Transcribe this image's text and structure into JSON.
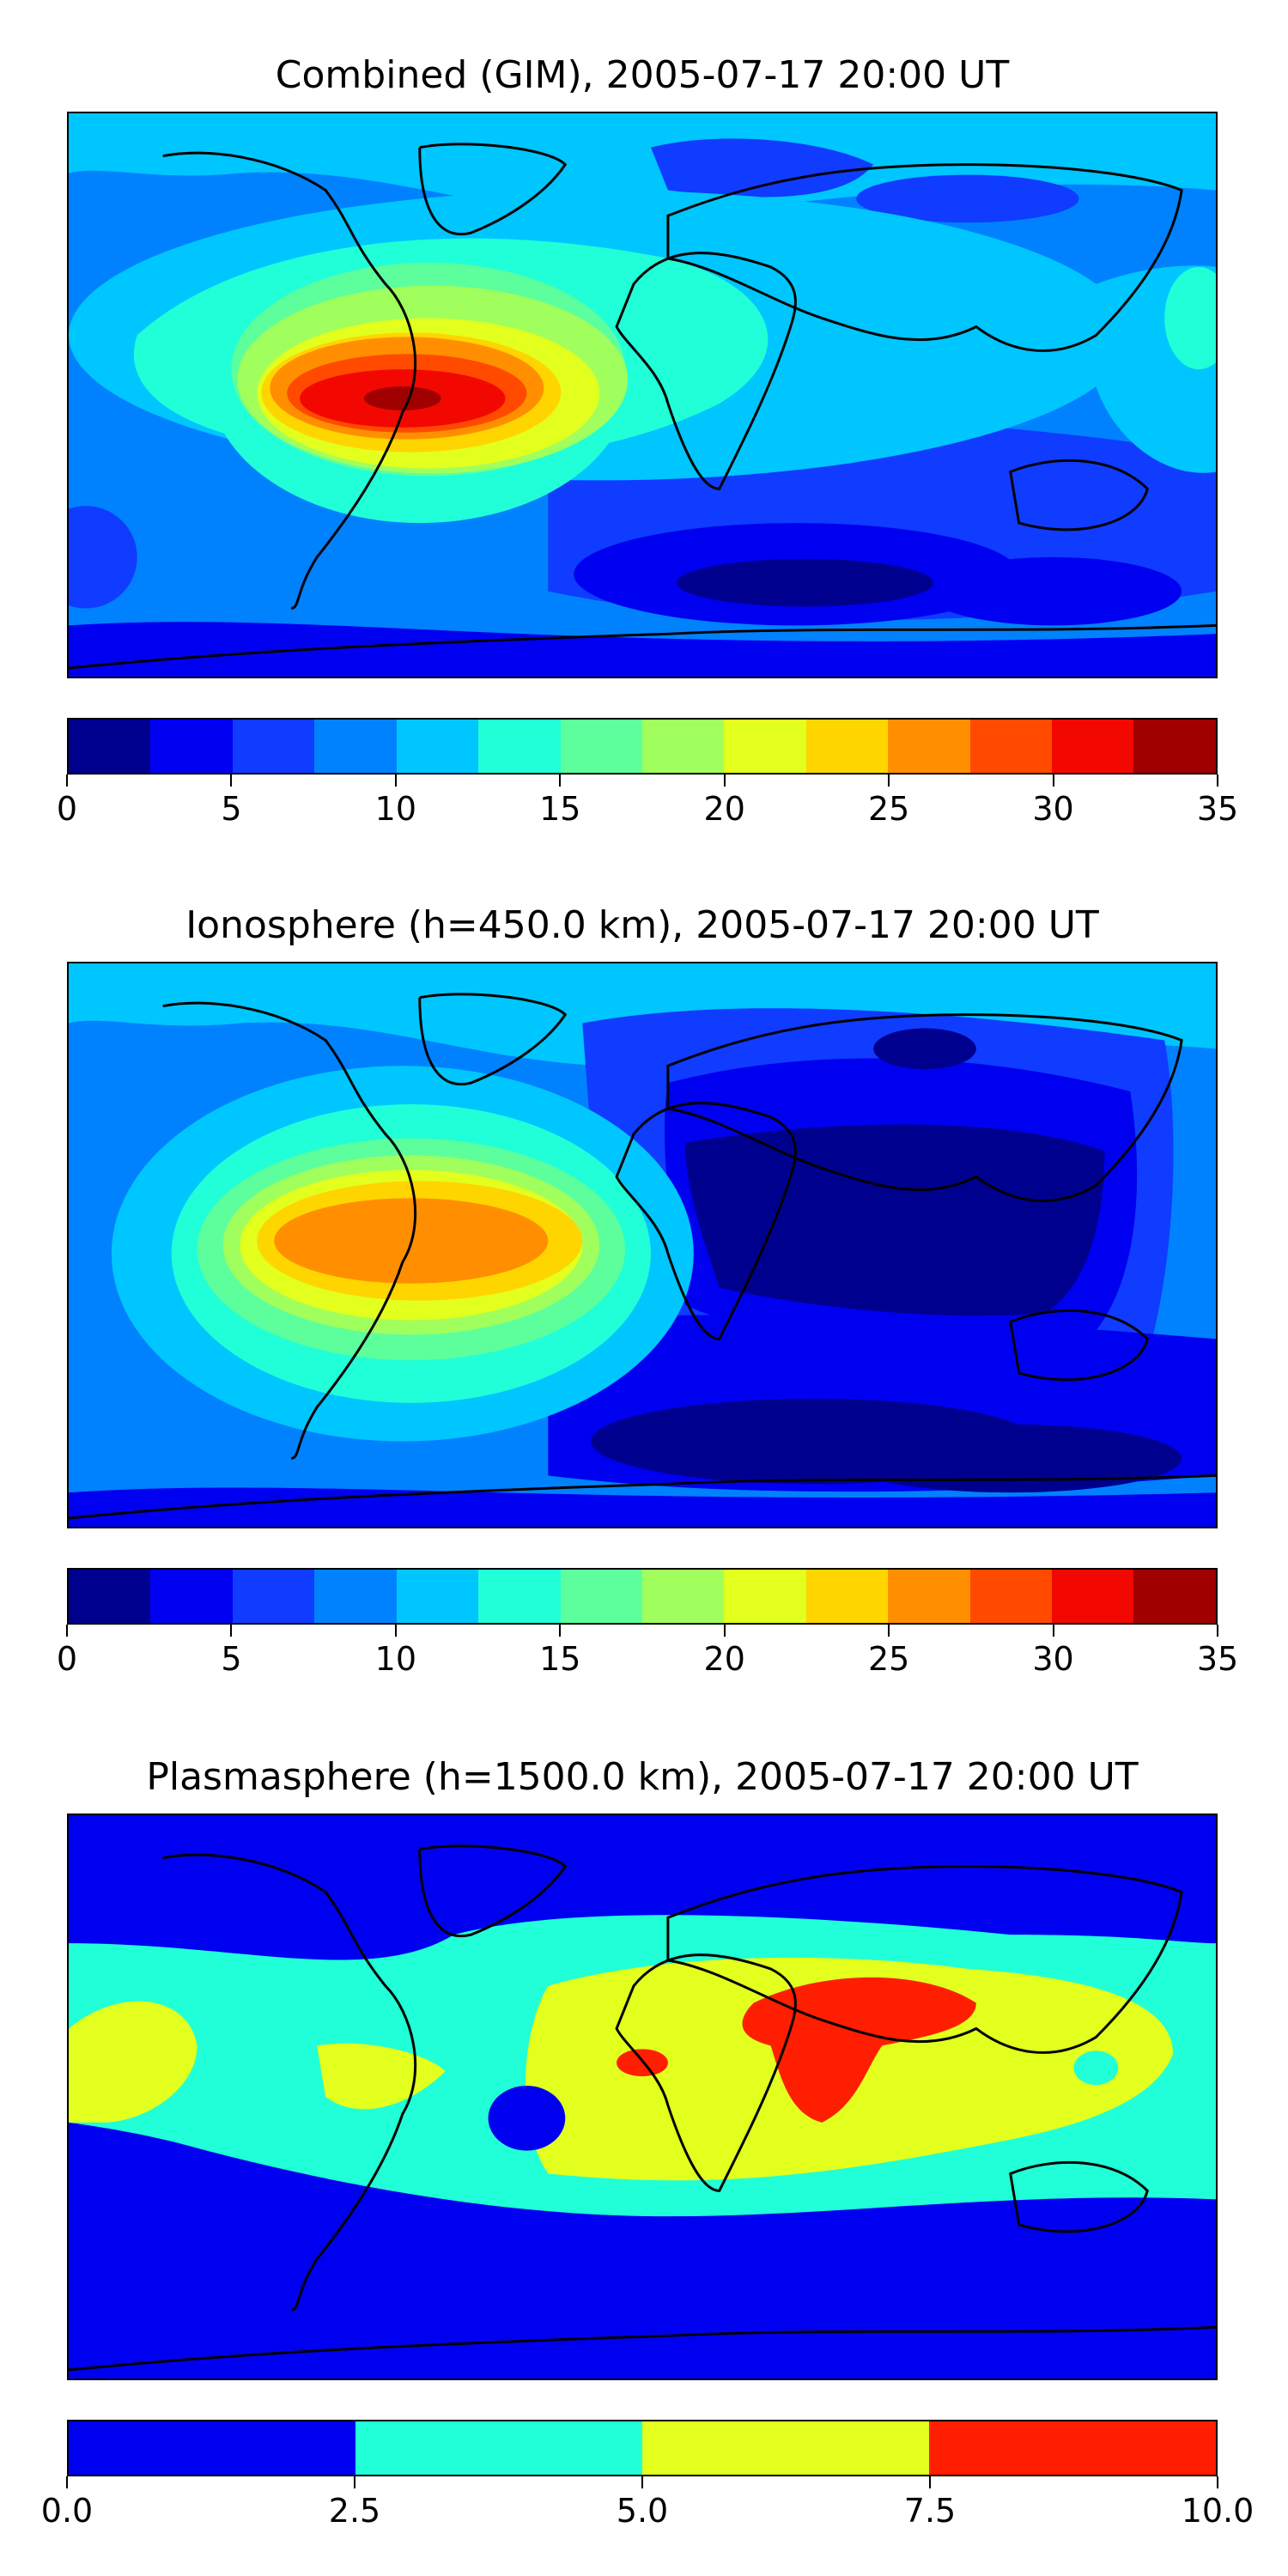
{
  "chart_data": [
    {
      "type": "heatmap",
      "title": "Combined (GIM), 2005-07-17 20:00 UT",
      "colorbar": {
        "levels": [
          0,
          2.5,
          5,
          7.5,
          10,
          12.5,
          15,
          17.5,
          20,
          22.5,
          25,
          27.5,
          30,
          32.5,
          35
        ],
        "ticks": [
          "0",
          "5",
          "10",
          "15",
          "20",
          "25",
          "30",
          "35"
        ],
        "range": [
          0,
          35
        ],
        "colors": [
          "#00008f",
          "#0000f0",
          "#0f3cff",
          "#0082ff",
          "#00c6ff",
          "#20ffd7",
          "#5cff9c",
          "#a0ff5c",
          "#e2ff1e",
          "#ffd500",
          "#ff8f00",
          "#ff4a00",
          "#f20800",
          "#a00000"
        ]
      },
      "peak": {
        "region": "tropical South America",
        "max_level": 35
      },
      "minimum": {
        "region": "southern Indian Ocean",
        "min_level": 0
      }
    },
    {
      "type": "heatmap",
      "title": "Ionosphere  (h=450.0 km), 2005-07-17 20:00 UT",
      "colorbar": {
        "levels": [
          0,
          2.5,
          5,
          7.5,
          10,
          12.5,
          15,
          17.5,
          20,
          22.5,
          25,
          27.5,
          30,
          32.5,
          35
        ],
        "ticks": [
          "0",
          "5",
          "10",
          "15",
          "20",
          "25",
          "30",
          "35"
        ],
        "range": [
          0,
          35
        ],
        "colors": [
          "#00008f",
          "#0000f0",
          "#0f3cff",
          "#0082ff",
          "#00c6ff",
          "#20ffd7",
          "#5cff9c",
          "#a0ff5c",
          "#e2ff1e",
          "#ffd500",
          "#ff8f00",
          "#ff4a00",
          "#f20800",
          "#a00000"
        ]
      },
      "peak": {
        "region": "tropical South America",
        "max_level": 27.5
      },
      "minimum": {
        "region": "Asia / Indian Ocean",
        "min_level": 0
      }
    },
    {
      "type": "heatmap",
      "title": "Plasmasphere (h=1500.0 km), 2005-07-17 20:00 UT",
      "colorbar": {
        "levels": [
          0.0,
          2.5,
          5.0,
          7.5,
          10.0
        ],
        "ticks": [
          "0.0",
          "2.5",
          "5.0",
          "7.5",
          "10.0"
        ],
        "range": [
          0,
          10
        ],
        "colors": [
          "#0000f0",
          "#20ffd7",
          "#e2ff1e",
          "#ff1e00"
        ]
      },
      "peak": {
        "region": "Arabia / India",
        "max_level": 10.0
      },
      "minimum": {
        "region": "high latitudes",
        "min_level": 0.0
      }
    }
  ]
}
